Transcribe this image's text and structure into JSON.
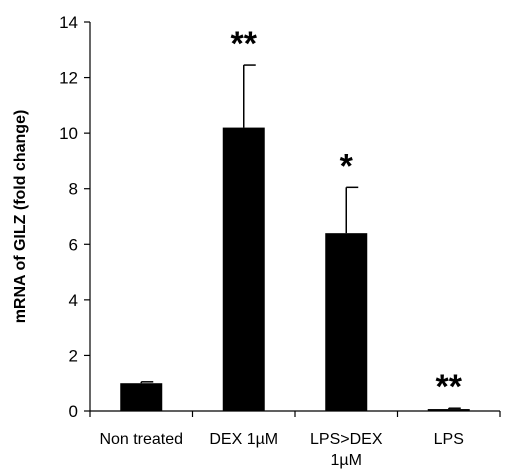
{
  "chart_data": {
    "type": "bar",
    "categories": [
      "Non treated",
      "DEX 1µM",
      "LPS>DEX 1µM",
      "LPS"
    ],
    "category_label_lines": [
      [
        "Non treated"
      ],
      [
        "DEX 1µM"
      ],
      [
        "LPS>DEX",
        "1µM"
      ],
      [
        "LPS"
      ]
    ],
    "values": [
      1.0,
      10.2,
      6.4,
      0.07
    ],
    "error_up": [
      0.05,
      2.25,
      1.65,
      0.03
    ],
    "significance": [
      "",
      "**",
      "*",
      "**"
    ],
    "ylabel": "mRNA of GILZ (fold change)",
    "xlabel": "",
    "title": "",
    "ylim": [
      0,
      14
    ],
    "yticks": [
      0,
      2,
      4,
      6,
      8,
      10,
      12,
      14
    ],
    "grid": false,
    "bar_color": "#000000"
  }
}
